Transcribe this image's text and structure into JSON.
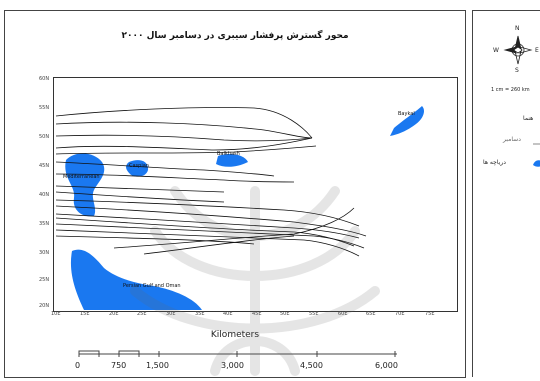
{
  "map": {
    "title": "محور گسترش پرفشار سیبری در دسامبر سال ۲۰۰۰",
    "lat_labels": [
      "60N",
      "55N",
      "50N",
      "45N",
      "40N",
      "35N",
      "30N",
      "25N",
      "20N"
    ],
    "lon_labels": [
      "10E",
      "15E",
      "20E",
      "25E",
      "30E",
      "35E",
      "40E",
      "45E",
      "50E",
      "55E",
      "60E",
      "65E",
      "70E",
      "75E"
    ],
    "places": {
      "baikal": "Baykal",
      "balkhash": "Balkhash",
      "caspian": "Caspian",
      "black_sea": "Mediterranean",
      "persian_gulf": "Persian Gulf and Oman"
    },
    "colors": {
      "water": "#1a78f0",
      "track": "#111111"
    }
  },
  "scale": {
    "title": "Kilometers",
    "ticks": [
      "0",
      "750",
      "1,500",
      "3,000",
      "4,500",
      "6,000"
    ]
  },
  "legend": {
    "north": "N",
    "south": "S",
    "east": "E",
    "west": "W",
    "ratio": "1 cm = 260 km",
    "header": "هنما",
    "track_label": "دسامبر",
    "lakes_label": "دریاچه ها"
  }
}
